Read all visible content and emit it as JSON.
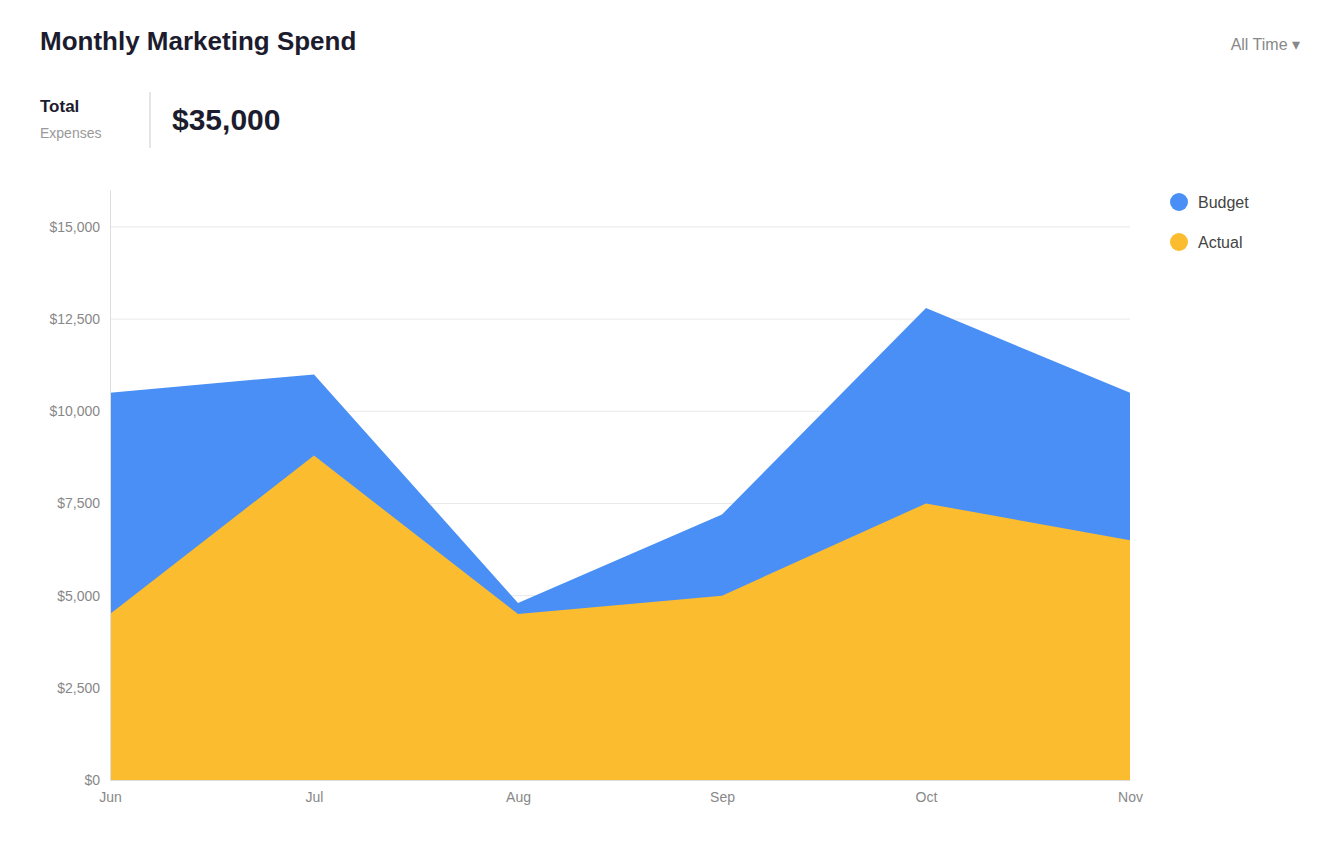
{
  "chart_data": {
    "type": "area",
    "title": "Monthly Marketing Spend",
    "annotations": [
      "All Time  ▾",
      "Total",
      "Expenses",
      "$35,000"
    ],
    "categories": [
      "Jun",
      "Jul",
      "Aug",
      "Sep",
      "Oct",
      "Nov"
    ],
    "series": [
      {
        "name": "Budget",
        "color": "#4A8FF5",
        "values": [
          10500,
          11000,
          4800,
          7200,
          12800,
          10500
        ]
      },
      {
        "name": "Actual",
        "color": "#FBBC30",
        "values": [
          4500,
          8800,
          4500,
          5000,
          7500,
          6500
        ]
      }
    ],
    "ylim": [
      0,
      16000
    ],
    "yticks": [
      {
        "value": 0,
        "label": "$0"
      },
      {
        "value": 2500,
        "label": "$2,500"
      },
      {
        "value": 5000,
        "label": "$5,000"
      },
      {
        "value": 7500,
        "label": "$7,500"
      },
      {
        "value": 10000,
        "label": "$10,000"
      },
      {
        "value": 12500,
        "label": "$12,500"
      },
      {
        "value": 15000,
        "label": "$15,000"
      }
    ],
    "grid": true,
    "legend": "right"
  }
}
